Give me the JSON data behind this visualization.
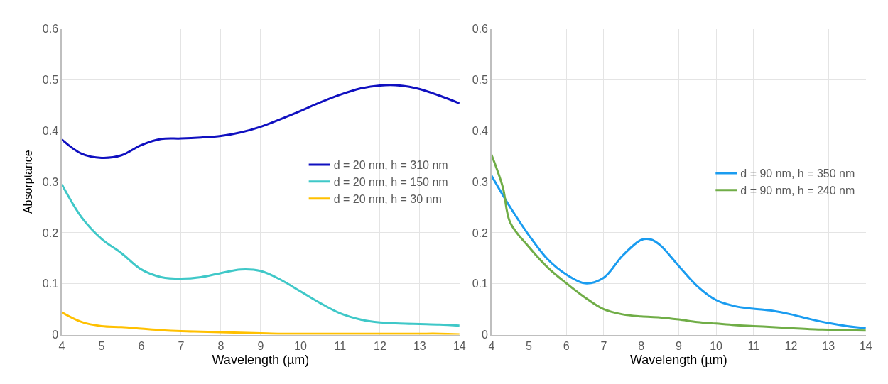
{
  "chart_data": [
    {
      "type": "line",
      "xlabel": "Wavelength (µm)",
      "ylabel": "Absorptance",
      "xlim": [
        4,
        14
      ],
      "ylim": [
        0,
        0.6
      ],
      "xticks": [
        4,
        5,
        6,
        7,
        8,
        9,
        10,
        11,
        12,
        13,
        14
      ],
      "yticks": [
        0,
        0.1,
        0.2,
        0.3,
        0.4,
        0.5,
        0.6
      ],
      "grid": true,
      "legend": "right",
      "marker": "none",
      "line_style": "solid",
      "x": [
        4,
        4.5,
        5,
        5.5,
        6,
        6.5,
        7,
        7.5,
        8,
        8.5,
        9,
        9.5,
        10,
        10.5,
        11,
        11.5,
        12,
        12.5,
        13,
        13.5,
        14
      ],
      "series": [
        {
          "name": "d = 20 nm, h = 310 nm",
          "color": "#1010c0",
          "values": [
            0.383,
            0.355,
            0.347,
            0.352,
            0.372,
            0.384,
            0.385,
            0.387,
            0.39,
            0.397,
            0.408,
            0.423,
            0.439,
            0.456,
            0.471,
            0.483,
            0.489,
            0.489,
            0.482,
            0.469,
            0.454
          ]
        },
        {
          "name": "d = 20 nm, h = 150 nm",
          "color": "#3fc8c8",
          "values": [
            0.295,
            0.23,
            0.188,
            0.16,
            0.128,
            0.113,
            0.11,
            0.113,
            0.121,
            0.128,
            0.125,
            0.108,
            0.085,
            0.062,
            0.042,
            0.03,
            0.024,
            0.022,
            0.021,
            0.02,
            0.018
          ]
        },
        {
          "name": "d = 20 nm, h = 30 nm",
          "color": "#ffc000",
          "values": [
            0.044,
            0.025,
            0.017,
            0.015,
            0.012,
            0.009,
            0.007,
            0.006,
            0.005,
            0.004,
            0.003,
            0.002,
            0.002,
            0.002,
            0.002,
            0.002,
            0.002,
            0.002,
            0.002,
            0.002,
            0.001
          ]
        }
      ]
    },
    {
      "type": "line",
      "xlabel": "Wavelength (µm)",
      "xlim": [
        4,
        14
      ],
      "ylim": [
        0,
        0.6
      ],
      "xticks": [
        4,
        5,
        6,
        7,
        8,
        9,
        10,
        11,
        12,
        13,
        14
      ],
      "yticks": [
        0,
        0.1,
        0.2,
        0.3,
        0.4,
        0.5,
        0.6
      ],
      "grid": true,
      "legend": "right",
      "marker": "none",
      "line_style": "solid",
      "series": [
        {
          "name": "d = 90 nm, h = 350 nm",
          "color": "#1a9cf0",
          "x": [
            4,
            4.5,
            5,
            5.5,
            6,
            6.5,
            7,
            7.5,
            8,
            8.25,
            8.5,
            9,
            9.5,
            10,
            10.5,
            11,
            11.5,
            12,
            12.5,
            13,
            13.5,
            14
          ],
          "values": [
            0.312,
            0.25,
            0.195,
            0.148,
            0.118,
            0.101,
            0.112,
            0.155,
            0.186,
            0.187,
            0.176,
            0.135,
            0.095,
            0.068,
            0.056,
            0.051,
            0.047,
            0.04,
            0.031,
            0.023,
            0.017,
            0.013
          ]
        },
        {
          "name": "d = 90 nm, h = 240 nm",
          "color": "#70ad47",
          "x": [
            4,
            4.3,
            4.5,
            5,
            5.5,
            6,
            6.5,
            7,
            7.5,
            8,
            8.5,
            9,
            9.5,
            10,
            10.5,
            11,
            11.5,
            12,
            12.5,
            13,
            13.5,
            14
          ],
          "values": [
            0.353,
            0.29,
            0.22,
            0.172,
            0.132,
            0.101,
            0.073,
            0.05,
            0.04,
            0.036,
            0.034,
            0.03,
            0.025,
            0.022,
            0.019,
            0.017,
            0.015,
            0.013,
            0.011,
            0.01,
            0.009,
            0.008
          ]
        }
      ]
    }
  ]
}
